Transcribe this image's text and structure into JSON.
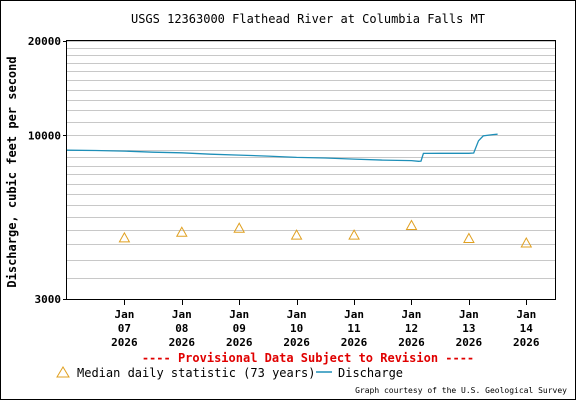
{
  "chart_data": {
    "type": "line",
    "title": "USGS 12363000 Flathead River at Columbia Falls MT",
    "ylabel": "Discharge, cubic feet per second",
    "xlabel": "",
    "y_scale": "log",
    "ylim": [
      3000,
      20000
    ],
    "y_tick_labels": [
      "20000",
      "10000",
      "3000"
    ],
    "x_ticks": [
      {
        "label": [
          "Jan",
          "07",
          "2026"
        ],
        "x": "2026-01-07"
      },
      {
        "label": [
          "Jan",
          "08",
          "2026"
        ],
        "x": "2026-01-08"
      },
      {
        "label": [
          "Jan",
          "09",
          "2026"
        ],
        "x": "2026-01-09"
      },
      {
        "label": [
          "Jan",
          "10",
          "2026"
        ],
        "x": "2026-01-10"
      },
      {
        "label": [
          "Jan",
          "11",
          "2026"
        ],
        "x": "2026-01-11"
      },
      {
        "label": [
          "Jan",
          "12",
          "2026"
        ],
        "x": "2026-01-12"
      },
      {
        "label": [
          "Jan",
          "13",
          "2026"
        ],
        "x": "2026-01-13"
      },
      {
        "label": [
          "Jan",
          "14",
          "2026"
        ],
        "x": "2026-01-14"
      }
    ],
    "xlim": [
      "2026-01-06T00:00",
      "2026-01-14T12:00"
    ],
    "grid": true,
    "series": [
      {
        "name": "Discharge",
        "color": "#1e8fb8",
        "points": [
          {
            "x": "2026-01-06T00:00",
            "y": 8960
          },
          {
            "x": "2026-01-06T12:00",
            "y": 8940
          },
          {
            "x": "2026-01-07T00:00",
            "y": 8900
          },
          {
            "x": "2026-01-07T12:00",
            "y": 8830
          },
          {
            "x": "2026-01-08T00:00",
            "y": 8790
          },
          {
            "x": "2026-01-08T12:00",
            "y": 8700
          },
          {
            "x": "2026-01-09T00:00",
            "y": 8640
          },
          {
            "x": "2026-01-09T12:00",
            "y": 8580
          },
          {
            "x": "2026-01-10T00:00",
            "y": 8500
          },
          {
            "x": "2026-01-10T12:00",
            "y": 8460
          },
          {
            "x": "2026-01-11T00:00",
            "y": 8390
          },
          {
            "x": "2026-01-11T12:00",
            "y": 8330
          },
          {
            "x": "2026-01-12T00:00",
            "y": 8300
          },
          {
            "x": "2026-01-12T03:00",
            "y": 8260
          },
          {
            "x": "2026-01-12T04:00",
            "y": 8270
          },
          {
            "x": "2026-01-12T05:00",
            "y": 8750
          },
          {
            "x": "2026-01-12T12:00",
            "y": 8760
          },
          {
            "x": "2026-01-13T00:00",
            "y": 8760
          },
          {
            "x": "2026-01-13T02:00",
            "y": 8780
          },
          {
            "x": "2026-01-13T04:00",
            "y": 9600
          },
          {
            "x": "2026-01-13T06:00",
            "y": 9950
          },
          {
            "x": "2026-01-13T10:00",
            "y": 10050
          },
          {
            "x": "2026-01-13T12:00",
            "y": 10080
          }
        ]
      },
      {
        "name": "Median daily statistic (73 years)",
        "color": "#e0a020",
        "marker": "triangle",
        "points": [
          {
            "x": "2026-01-07",
            "y": 4700
          },
          {
            "x": "2026-01-08",
            "y": 4900
          },
          {
            "x": "2026-01-09",
            "y": 5050
          },
          {
            "x": "2026-01-10",
            "y": 4800
          },
          {
            "x": "2026-01-11",
            "y": 4800
          },
          {
            "x": "2026-01-12",
            "y": 5150
          },
          {
            "x": "2026-01-13",
            "y": 4680
          },
          {
            "x": "2026-01-14",
            "y": 4530
          }
        ]
      }
    ],
    "legend": {
      "placement": "bottom",
      "items": [
        "Median daily statistic (73 years)",
        "Discharge"
      ]
    },
    "annotations": {
      "provisional": "---- Provisional Data Subject to Revision ----",
      "credit": "Graph courtesy of the U.S. Geological Survey"
    }
  },
  "colors": {
    "border": "#000000",
    "grid": "#c8c8c8",
    "provisional": "#e00000",
    "median": "#e0a020",
    "discharge": "#1e8fb8"
  }
}
